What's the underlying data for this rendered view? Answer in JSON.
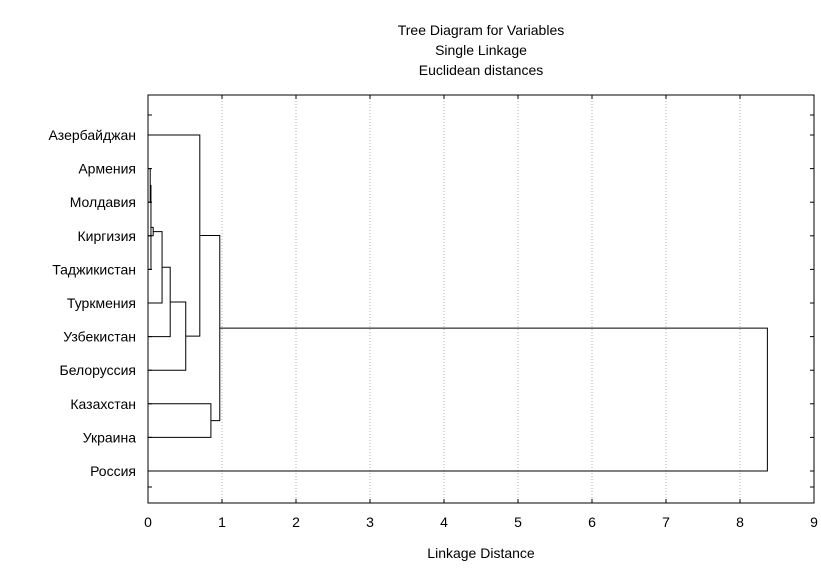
{
  "chart_data": {
    "type": "dendrogram",
    "title": [
      "Tree Diagram for  Variables",
      "Single Linkage",
      "Euclidean distances"
    ],
    "xlabel": "Linkage Distance",
    "ylabel": "",
    "xlim": [
      0,
      9
    ],
    "x_ticks": [
      "0",
      "1",
      "2",
      "3",
      "4",
      "5",
      "6",
      "7",
      "8",
      "9"
    ],
    "grid": "vertical dotted",
    "leaves": [
      "Азербайджан",
      "Армения",
      "Молдавия",
      "Киргизия",
      "Таджикистан",
      "Туркмения",
      "Узбекистан",
      "Белоруссия",
      "Казахстан",
      "Украина",
      "Россия"
    ],
    "merges": [
      {
        "a": "Армения",
        "b": "Молдавия",
        "distance": 0.03
      },
      {
        "a": "Армения+Молдавия",
        "b": "Таджикистан",
        "distance": 0.04
      },
      {
        "a": "Армения+Молдавия+Таджикистан",
        "b": "Киргизия",
        "distance": 0.07
      },
      {
        "a": "Армения+Молдавия+Киргизия+Таджикистан",
        "b": "Туркмения",
        "distance": 0.19
      },
      {
        "a": "Армения+Молдавия+Киргизия+Таджикистан+Туркмения",
        "b": "Узбекистан",
        "distance": 0.3
      },
      {
        "a": "Армения+Молдавия+Киргизия+Таджикистан+Туркмения+Узбекистан",
        "b": "Белоруссия",
        "distance": 0.51
      },
      {
        "a": "Армения+Молдавия+Киргизия+Таджикистан+Туркмения+Узбекистан+Белоруссия",
        "b": "Азербайджан",
        "distance": 0.7
      },
      {
        "a": "Казахстан",
        "b": "Украина",
        "distance": 0.85
      },
      {
        "a": "Азербайджан+Армения+Молдавия+Киргизия+Таджикистан+Туркмения+Узбекистан+Белоруссия",
        "b": "Казахстан+Украина",
        "distance": 0.97
      },
      {
        "a": "all-others",
        "b": "Россия",
        "distance": 8.37
      }
    ]
  }
}
